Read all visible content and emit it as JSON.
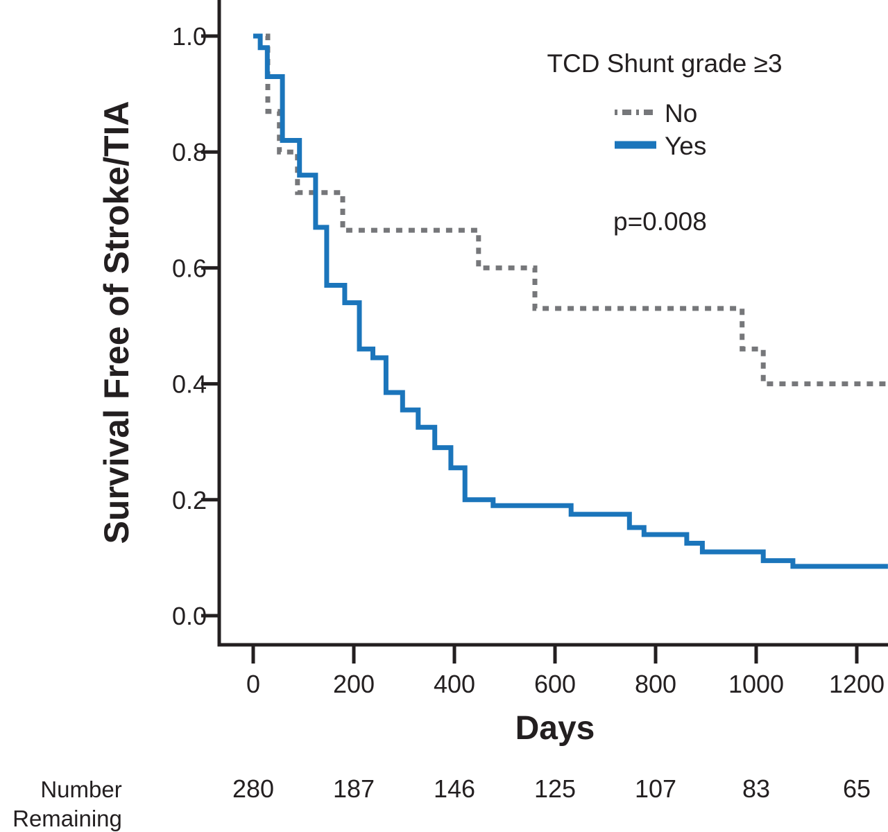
{
  "chart_data": {
    "type": "line",
    "subtype": "kaplan-meier-step",
    "title": "",
    "xlabel": "Days",
    "ylabel": "Survival Free of Stroke/TIA",
    "xlim": [
      0,
      1262
    ],
    "ylim": [
      0.0,
      1.0
    ],
    "grid": false,
    "x_ticks": [
      0,
      200,
      400,
      600,
      800,
      1000,
      1200
    ],
    "x_tick_labels": [
      "0",
      "200",
      "400",
      "600",
      "800",
      "1000",
      "1200"
    ],
    "y_ticks": [
      1.0,
      0.8,
      0.6,
      0.4,
      0.2,
      0.0
    ],
    "y_tick_labels": [
      "1.0",
      "0.8",
      "0.6",
      "0.4",
      "0.2",
      "0.0"
    ],
    "legend_title": "TCD Shunt grade ≥3",
    "legend_position": "top-right",
    "annotation": "p=0.008",
    "series": [
      {
        "name": "No",
        "color": "#76777a",
        "style": "dashed",
        "steps": [
          [
            0,
            1.0
          ],
          [
            29,
            0.87
          ],
          [
            52,
            0.8
          ],
          [
            88,
            0.73
          ],
          [
            178,
            0.665
          ],
          [
            448,
            0.6
          ],
          [
            560,
            0.53
          ],
          [
            972,
            0.46
          ],
          [
            1014,
            0.4
          ]
        ]
      },
      {
        "name": "Yes",
        "color": "#1b75bb",
        "style": "solid",
        "steps": [
          [
            0,
            1.0
          ],
          [
            14,
            0.98
          ],
          [
            28,
            0.93
          ],
          [
            58,
            0.82
          ],
          [
            92,
            0.76
          ],
          [
            124,
            0.67
          ],
          [
            146,
            0.57
          ],
          [
            182,
            0.54
          ],
          [
            211,
            0.46
          ],
          [
            238,
            0.445
          ],
          [
            264,
            0.385
          ],
          [
            297,
            0.355
          ],
          [
            328,
            0.325
          ],
          [
            361,
            0.29
          ],
          [
            393,
            0.255
          ],
          [
            421,
            0.2
          ],
          [
            477,
            0.19
          ],
          [
            632,
            0.175
          ],
          [
            748,
            0.152
          ],
          [
            777,
            0.14
          ],
          [
            862,
            0.125
          ],
          [
            893,
            0.11
          ],
          [
            1014,
            0.095
          ],
          [
            1073,
            0.085
          ]
        ]
      }
    ],
    "number_remaining": {
      "label_line1": "Number",
      "label_line2": "Remaining",
      "days": [
        0,
        200,
        400,
        600,
        800,
        1000,
        1200
      ],
      "values": [
        "280",
        "187",
        "146",
        "125",
        "107",
        "83",
        "65"
      ]
    }
  },
  "colors": {
    "axis_and_text": "#231f20",
    "series_no": "#76777a",
    "series_yes": "#1b75bb",
    "background": "#ffffff"
  }
}
